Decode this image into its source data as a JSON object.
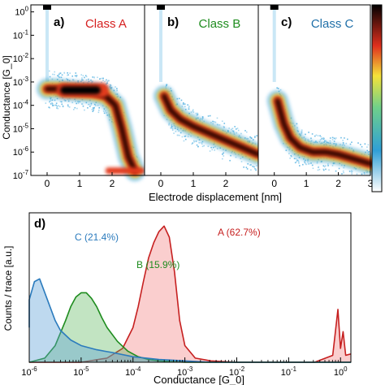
{
  "chart_data": [
    {
      "type": "heatmap",
      "panels": [
        {
          "label": "a)",
          "title": "Class A",
          "color": "#d62020",
          "ridge": [
            [
              0.0,
              -3.3
            ],
            [
              0.3,
              -3.3
            ],
            [
              0.6,
              -3.35
            ],
            [
              1.0,
              -3.4
            ],
            [
              1.4,
              -3.45
            ],
            [
              1.8,
              -3.6
            ],
            [
              2.1,
              -4.0
            ],
            [
              2.3,
              -5.0
            ],
            [
              2.5,
              -6.2
            ],
            [
              2.7,
              -6.8
            ]
          ],
          "dense_band": [
            0.3,
            1.9,
            -3.35
          ],
          "floor": [
            1.8,
            3.0,
            -6.8
          ]
        },
        {
          "label": "b)",
          "title": "Class B",
          "color": "#1e8c1e",
          "ridge": [
            [
              0.1,
              -3.6
            ],
            [
              0.3,
              -4.2
            ],
            [
              0.6,
              -4.6
            ],
            [
              1.0,
              -4.9
            ],
            [
              1.5,
              -5.2
            ],
            [
              2.0,
              -5.5
            ],
            [
              2.5,
              -5.8
            ],
            [
              3.0,
              -6.1
            ]
          ]
        },
        {
          "label": "c)",
          "title": "Class C",
          "color": "#1f6fa8",
          "ridge": [
            [
              0.1,
              -3.8
            ],
            [
              0.3,
              -4.8
            ],
            [
              0.5,
              -5.4
            ],
            [
              0.8,
              -5.8
            ],
            [
              1.2,
              -6.0
            ],
            [
              1.6,
              -6.0
            ],
            [
              2.0,
              -6.1
            ],
            [
              2.5,
              -6.3
            ],
            [
              3.0,
              -6.5
            ]
          ]
        }
      ],
      "x_ticks": [
        "0",
        "1",
        "2",
        "3"
      ],
      "xlim": [
        -0.5,
        3.0
      ],
      "y_ticks": [
        "10^0",
        "10^-1",
        "10^-2",
        "10^-3",
        "10^-4",
        "10^-5",
        "10^-6",
        "10^-7"
      ],
      "ylim_log10": [
        -7.0,
        0.3
      ],
      "xlabel": "Electrode displacement [nm]",
      "ylabel": "Conductance [G_0]",
      "colorbar": true
    },
    {
      "type": "area",
      "label": "d)",
      "ylabel": "Counts / trace [a.u.]",
      "xlabel": "Conductance [G_0]",
      "x_scale": "log",
      "x_ticks": [
        "10^-6",
        "10^-5",
        "10^-4",
        "10^-3",
        "10^-2",
        "10^-1",
        "10^0"
      ],
      "xlim_log10": [
        -6.0,
        0.2
      ],
      "series": [
        {
          "name": "A (62.7%)",
          "color": "#c62020",
          "x": [
            -6.0,
            -5.5,
            -5.0,
            -4.5,
            -4.2,
            -4.0,
            -3.9,
            -3.8,
            -3.7,
            -3.6,
            -3.5,
            -3.4,
            -3.3,
            -3.2,
            -3.1,
            -3.0,
            -2.8,
            -2.5,
            -2.0,
            -1.5,
            -1.0,
            -0.5,
            -0.15,
            -0.05,
            0.0,
            0.05,
            0.1,
            0.2
          ],
          "y": [
            0.0,
            0.0,
            0.0,
            0.03,
            0.1,
            0.25,
            0.4,
            0.58,
            0.75,
            0.86,
            0.94,
            0.98,
            0.9,
            0.65,
            0.3,
            0.12,
            0.03,
            0.01,
            0.0,
            0.0,
            0.0,
            0.0,
            0.05,
            0.38,
            0.1,
            0.22,
            0.05,
            0.06
          ]
        },
        {
          "name": "B (15.9%)",
          "color": "#1e8c1e",
          "x": [
            -6.0,
            -5.7,
            -5.5,
            -5.3,
            -5.2,
            -5.1,
            -5.0,
            -4.9,
            -4.8,
            -4.7,
            -4.6,
            -4.5,
            -4.3,
            -4.1,
            -3.9,
            -3.7,
            -3.5,
            -3.0,
            -2.5,
            -2.0,
            -1.5,
            -1.0,
            -0.5,
            0.0,
            0.2
          ],
          "y": [
            0.0,
            0.03,
            0.12,
            0.3,
            0.4,
            0.47,
            0.5,
            0.5,
            0.46,
            0.4,
            0.32,
            0.25,
            0.15,
            0.08,
            0.04,
            0.02,
            0.01,
            0.0,
            0.0,
            0.0,
            0.0,
            0.0,
            0.0,
            0.0,
            0.0
          ]
        },
        {
          "name": "C (21.4%)",
          "color": "#2b7bbd",
          "x": [
            -6.2,
            -6.0,
            -5.9,
            -5.8,
            -5.7,
            -5.6,
            -5.5,
            -5.4,
            -5.2,
            -5.0,
            -4.7,
            -4.4,
            -4.0,
            -3.5,
            -3.0,
            -2.5,
            -2.0,
            -1.0,
            0.0,
            0.2
          ],
          "y": [
            0.25,
            0.45,
            0.58,
            0.6,
            0.5,
            0.4,
            0.3,
            0.23,
            0.16,
            0.12,
            0.09,
            0.07,
            0.04,
            0.02,
            0.01,
            0.0,
            0.0,
            0.0,
            0.0,
            0.0
          ]
        }
      ]
    }
  ]
}
